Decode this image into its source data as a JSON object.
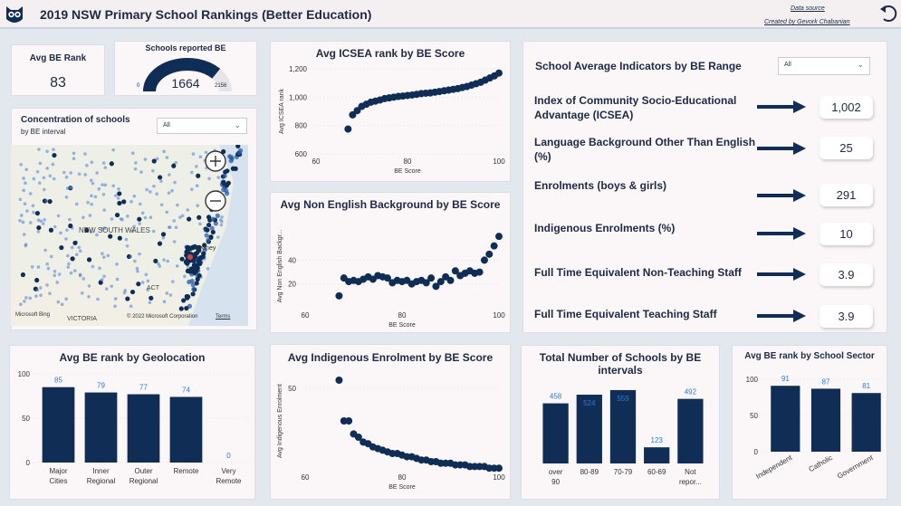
{
  "header": {
    "title": "2019 NSW Primary School Rankings (Better Education)",
    "data_source_link": "Data source",
    "created_by_link": "Created by Gevork Chabanian"
  },
  "kpi_rank": {
    "title": "Avg BE Rank",
    "value": "83"
  },
  "kpi_gauge": {
    "title": "Schools reported BE",
    "value": "1664",
    "min": "0",
    "max": "2156",
    "fraction": 0.772
  },
  "map_panel": {
    "title": "Concentration of schools",
    "subtitle": "by BE interval",
    "filter_value": "All",
    "labels": {
      "nsw": "NEW SOUTH WALES",
      "sydney": "Sydney",
      "act": "ACT",
      "victoria": "VICTORIA"
    },
    "bing": "Microsoft Bing",
    "copyright": "© 2022 Microsoft Corporation",
    "terms": "Terms"
  },
  "indicators": {
    "title": "School Average Indicators by BE Range",
    "filter_value": "All",
    "items": [
      {
        "label": "Index of Community Socio-Educational Advantage (ICSEA)",
        "value": "1,002"
      },
      {
        "label": "Language Background Other Than English (%)",
        "value": "25"
      },
      {
        "label": "Enrolments (boys & girls)",
        "value": "291"
      },
      {
        "label": "Indigenous Enrolments (%)",
        "value": "10"
      },
      {
        "label": "Full Time Equivalent Non-Teaching Staff",
        "value": "3.9"
      },
      {
        "label": "Full Time Equivalent Teaching Staff",
        "value": "3.9"
      }
    ]
  },
  "chart_data": [
    {
      "id": "icsea",
      "type": "scatter",
      "title": "Avg ICSEA rank by BE Score",
      "xlabel": "BE Score",
      "ylabel": "Avg ICSEA rank",
      "xlim": [
        60,
        100
      ],
      "ylim": [
        600,
        1200
      ],
      "xticks": [
        "60",
        "80",
        "100"
      ],
      "yticks": [
        "600",
        "800",
        "1,000",
        "1,200"
      ],
      "x": [
        67,
        68,
        69,
        70,
        71,
        72,
        73,
        74,
        75,
        76,
        77,
        78,
        79,
        80,
        81,
        82,
        83,
        84,
        85,
        86,
        87,
        88,
        89,
        90,
        91,
        92,
        93,
        94,
        95,
        96,
        97,
        98,
        99,
        100
      ],
      "y": [
        775,
        875,
        905,
        935,
        950,
        965,
        972,
        980,
        990,
        995,
        1000,
        1005,
        1008,
        1012,
        1015,
        1020,
        1025,
        1028,
        1030,
        1035,
        1040,
        1045,
        1050,
        1055,
        1060,
        1068,
        1075,
        1085,
        1095,
        1105,
        1120,
        1135,
        1150,
        1170
      ]
    },
    {
      "id": "lbote",
      "type": "scatter",
      "title": "Avg Non English Background by BE Score",
      "xlabel": "BE Score",
      "ylabel": "Avg Non English Backgr...",
      "xlim": [
        60,
        100
      ],
      "ylim": [
        0,
        70
      ],
      "xticks": [
        "60",
        "80",
        "100"
      ],
      "yticks": [
        "20",
        "40"
      ],
      "x": [
        67,
        68,
        69,
        70,
        71,
        72,
        73,
        74,
        75,
        76,
        77,
        78,
        79,
        80,
        81,
        82,
        83,
        84,
        85,
        86,
        87,
        88,
        89,
        90,
        91,
        92,
        93,
        94,
        95,
        96,
        97,
        98,
        99,
        100
      ],
      "y": [
        10,
        25,
        22,
        23,
        22,
        24,
        26,
        24,
        27,
        26,
        25,
        21,
        23,
        22,
        23,
        20,
        22,
        23,
        21,
        25,
        18,
        22,
        26,
        23,
        31,
        27,
        29,
        31,
        29,
        30,
        40,
        45,
        52,
        60
      ]
    },
    {
      "id": "indigenous",
      "type": "scatter",
      "title": "Avg Indigenous Enrolment by BE Score",
      "xlabel": "BE Score",
      "ylabel": "Avg Indigenous Enrolment",
      "xlim": [
        60,
        100
      ],
      "ylim": [
        0,
        60
      ],
      "xticks": [
        "60",
        "80",
        "100"
      ],
      "yticks": [
        "50"
      ],
      "x": [
        67,
        68,
        69,
        70,
        71,
        72,
        73,
        74,
        75,
        76,
        77,
        78,
        79,
        80,
        81,
        82,
        83,
        84,
        85,
        86,
        87,
        88,
        89,
        90,
        91,
        92,
        93,
        94,
        95,
        96,
        97,
        98,
        99,
        100
      ],
      "y": [
        55,
        30,
        30,
        22,
        20,
        17,
        16,
        14,
        13,
        12,
        11,
        10,
        10,
        9,
        8,
        8,
        7,
        6,
        6,
        5,
        5,
        4,
        4,
        4,
        3,
        3,
        3,
        2,
        2,
        2,
        2,
        1,
        1,
        1
      ]
    },
    {
      "id": "geo",
      "type": "bar",
      "title": "Avg BE rank by Geolocation",
      "categories": [
        "Major Cities",
        "Inner Regional",
        "Outer Regional",
        "Remote",
        "Very Remote"
      ],
      "values": [
        85,
        79,
        77,
        74,
        0
      ],
      "ylim": [
        0,
        100
      ],
      "yticks": [
        "0",
        "50",
        "100"
      ]
    },
    {
      "id": "intervals",
      "type": "bar",
      "title": "Total Number of Schools by BE intervals",
      "categories": [
        "over 90",
        "80-89",
        "70-79",
        "60-69",
        "Not repor..."
      ],
      "values": [
        458,
        524,
        559,
        123,
        492
      ],
      "ylim": [
        0,
        600
      ]
    },
    {
      "id": "sector",
      "type": "bar",
      "title": "Avg BE rank by School Sector",
      "categories": [
        "Independent",
        "Catholic",
        "Government"
      ],
      "values": [
        91,
        87,
        81
      ],
      "ylim": [
        0,
        100
      ],
      "yticks": [
        "0",
        "50",
        "100"
      ]
    }
  ],
  "colors": {
    "accent": "#0f2d55",
    "label_blue": "#2e7bd6",
    "panel": "#fbf7f8",
    "background": "#e3e8ef"
  }
}
